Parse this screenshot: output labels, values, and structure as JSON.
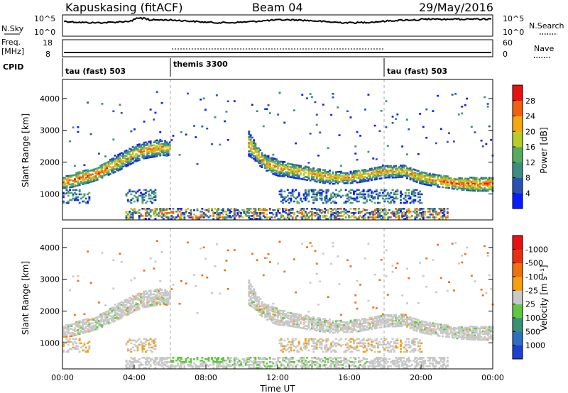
{
  "header": {
    "site": "Kapuskasing (fitACF)",
    "beam": "Beam 04",
    "date": "29/May/2016"
  },
  "strip": {
    "nsky_label": "N.Sky",
    "nsky_ticks": [
      "10^5",
      "10^0"
    ],
    "nsearch_ticks": [
      "10^5",
      "10^0"
    ],
    "nsearch_label": "N.Search",
    "freq_label_1": "Freq.",
    "freq_label_2": "[MHz]",
    "freq_ticks": [
      "18",
      "8"
    ],
    "nave_ticks": [
      "60",
      "0"
    ],
    "nave_label": "Nave",
    "cpid_label": "CPID",
    "cpid_modes": [
      {
        "label": "tau (fast) 503",
        "start_h": 0
      },
      {
        "label": "themis 3300",
        "start_h": 6
      },
      {
        "label": "tau (fast) 503",
        "start_h": 18
      }
    ]
  },
  "chart_data": [
    {
      "type": "heatmap",
      "name": "power",
      "ylabel": "Slant Range [km]",
      "yticks": [
        1000,
        2000,
        3000,
        4000
      ],
      "ylim": [
        180,
        4600
      ],
      "xlim": [
        0,
        24
      ],
      "colorbar_label": "Power [dB]",
      "colorbar_ticks": [
        "4",
        "8",
        "12",
        "16",
        "20",
        "24",
        "28"
      ],
      "colors": [
        "#0a1aff",
        "#2a52b5",
        "#3e8c82",
        "#56ab60",
        "#b9cc2a",
        "#f5a712",
        "#f06010",
        "#e81010"
      ]
    },
    {
      "type": "heatmap",
      "name": "velocity",
      "ylabel": "Slant Range [km]",
      "yticks": [
        1000,
        2000,
        3000,
        4000
      ],
      "ylim": [
        180,
        4600
      ],
      "xlim": [
        0,
        24
      ],
      "xticks": [
        "00:00",
        "04:00",
        "08:00",
        "12:00",
        "16:00",
        "20:00",
        "00:00"
      ],
      "xlabel": "Time UT",
      "colorbar_label": "Velocity [m s⁻¹]",
      "colorbar_ticks": [
        "1000",
        "500",
        "100",
        "25",
        "-25",
        "-100",
        "-500",
        "-1000"
      ],
      "colors": [
        "#1f3fd0",
        "#2f6fc0",
        "#3a8f78",
        "#60c840",
        "#c8c8c8",
        "#f4a010",
        "#f07010",
        "#e83010",
        "#e81010"
      ]
    }
  ]
}
